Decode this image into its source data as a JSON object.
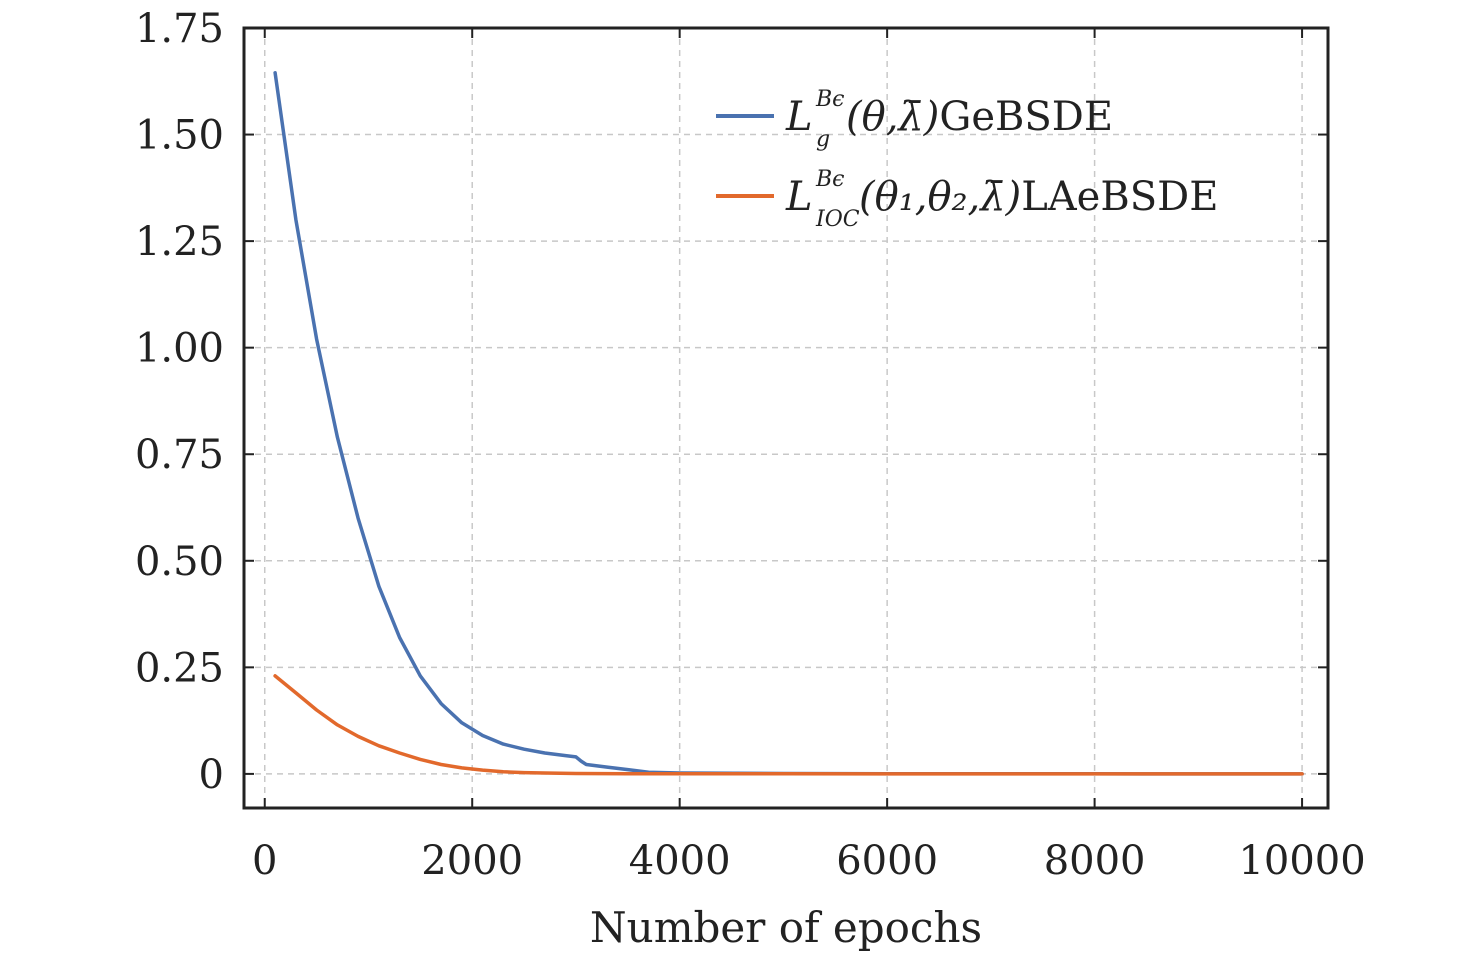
{
  "chart_data": {
    "type": "line",
    "xlabel": "Number of epochs",
    "ylabel": "",
    "xlim": [
      -200,
      10250
    ],
    "ylim": [
      -0.08,
      1.75
    ],
    "x_ticks": [
      0,
      2000,
      4000,
      6000,
      8000,
      10000
    ],
    "x_tick_labels": [
      "0",
      "2000",
      "4000",
      "6000",
      "8000",
      "10000"
    ],
    "y_ticks": [
      0,
      0.25,
      0.5,
      0.75,
      1.0,
      1.25,
      1.5,
      1.75
    ],
    "y_tick_labels": [
      "0",
      "0.25",
      "0.50",
      "0.75",
      "1.00",
      "1.25",
      "1.50",
      "1.75"
    ],
    "grid": true,
    "legend_position": "top-right",
    "series": [
      {
        "name": "GeBSDE",
        "legend": {
          "main": "L",
          "sup": "Bϵ",
          "sub": "g",
          "args": "(θ,λ̄)",
          "suffix": "GeBSDE"
        },
        "color": "#4a72b0",
        "x": [
          100,
          300,
          500,
          700,
          900,
          1100,
          1300,
          1500,
          1700,
          1900,
          2100,
          2300,
          2500,
          2700,
          2900,
          3000,
          3050,
          3100,
          3300,
          3500,
          3700,
          4000,
          5000,
          6000,
          7000,
          8000,
          9000,
          10000
        ],
        "y": [
          1.645,
          1.3,
          1.02,
          0.79,
          0.6,
          0.44,
          0.32,
          0.23,
          0.165,
          0.12,
          0.09,
          0.07,
          0.058,
          0.049,
          0.043,
          0.04,
          0.03,
          0.022,
          0.016,
          0.01,
          0.004,
          0.002,
          0.001,
          0.0005,
          0.0003,
          0.0002,
          0.0001,
          0.0001
        ]
      },
      {
        "name": "LAeBSDE",
        "legend": {
          "main": "L",
          "sup": "Bϵ",
          "sub": "IOC",
          "args": "(θ₁,θ₂,λ̄)",
          "suffix": "LAeBSDE"
        },
        "color": "#e2692c",
        "x": [
          100,
          300,
          500,
          700,
          900,
          1100,
          1300,
          1500,
          1700,
          1900,
          2100,
          2300,
          2500,
          2700,
          3000,
          3500,
          4000,
          5000,
          6000,
          7000,
          8000,
          9000,
          10000
        ],
        "y": [
          0.23,
          0.19,
          0.15,
          0.115,
          0.088,
          0.066,
          0.049,
          0.034,
          0.022,
          0.014,
          0.009,
          0.005,
          0.003,
          0.002,
          0.001,
          0.0005,
          0.0003,
          0.0002,
          0.0001,
          0.0001,
          0.0001,
          0.0001,
          0.0001
        ]
      }
    ]
  }
}
